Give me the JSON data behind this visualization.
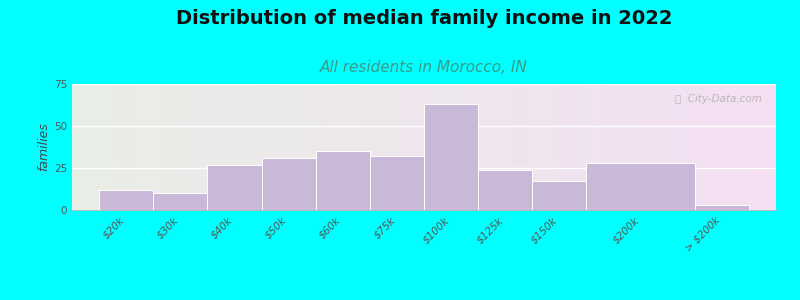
{
  "title": "Distribution of median family income in 2022",
  "subtitle": "All residents in Morocco, IN",
  "ylabel": "families",
  "categories": [
    "$20k",
    "$30k",
    "$40k",
    "$50k",
    "$60k",
    "$75k",
    "$100k",
    "$125k",
    "$150k",
    "$200k",
    "> $200k"
  ],
  "values": [
    12,
    10,
    27,
    31,
    35,
    32,
    63,
    24,
    17,
    28,
    3
  ],
  "bar_widths": [
    1,
    1,
    1,
    1,
    1,
    1,
    1,
    1,
    1,
    2,
    1
  ],
  "bar_color": "#c9b8d8",
  "bar_edge_color": "#ffffff",
  "background_outer": "#00ffff",
  "ylim": [
    0,
    75
  ],
  "yticks": [
    0,
    25,
    50,
    75
  ],
  "title_fontsize": 14,
  "subtitle_fontsize": 11,
  "subtitle_color": "#3a9a8a",
  "ylabel_fontsize": 9,
  "tick_fontsize": 7.5,
  "watermark_text": "ⓘ  City-Data.com"
}
